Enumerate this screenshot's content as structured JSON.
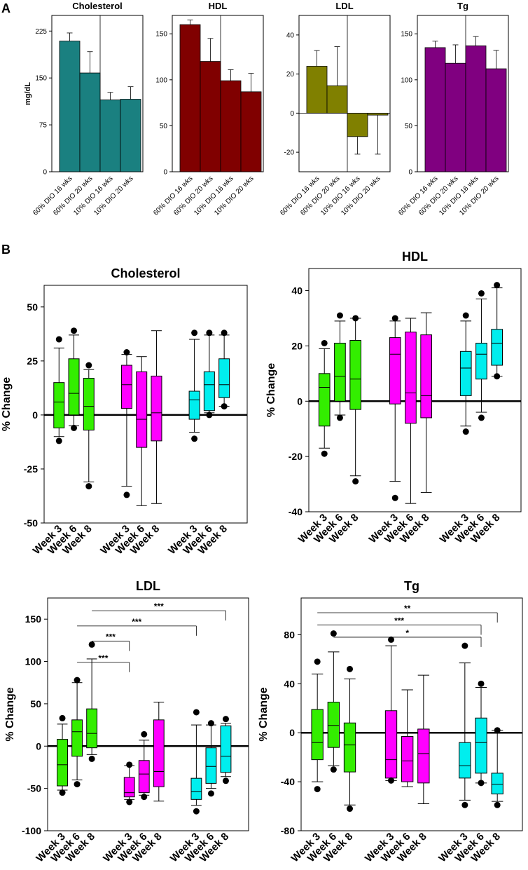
{
  "panel_labels": [
    "A",
    "B"
  ],
  "colors": {
    "cholesterol": "#1a8080",
    "hdl": "#800000",
    "ldl": "#808000",
    "tg": "#800080",
    "green": "#33ee00",
    "magenta": "#ff00ff",
    "cyan": "#00eeee"
  },
  "chart_data": [
    {
      "type": "bar",
      "panel": "A",
      "title": "Cholesterol",
      "ylabel": "mg/dL",
      "categories": [
        "60% DIO 16 wks",
        "60% DIO 20 wks",
        "10% DIO 16 wks",
        "10% DIO 20 wks"
      ],
      "values": [
        209,
        158,
        115,
        116
      ],
      "errors": [
        13,
        34,
        12,
        20
      ],
      "ylim": [
        0,
        250
      ],
      "yticks": [
        0,
        75,
        150,
        225
      ],
      "divider_after": 2,
      "color_key": "cholesterol"
    },
    {
      "type": "bar",
      "panel": "A",
      "title": "HDL",
      "ylabel": "",
      "categories": [
        "60% DIO 16 wks",
        "60% DIO 20 wks",
        "10% DIO 16 wks",
        "10% DIO 20 wks"
      ],
      "values": [
        160,
        120,
        99,
        87
      ],
      "errors": [
        5,
        25,
        12,
        20
      ],
      "ylim": [
        0,
        170
      ],
      "yticks": [
        0,
        50,
        100,
        150
      ],
      "divider_after": 2,
      "color_key": "hdl"
    },
    {
      "type": "bar",
      "panel": "A",
      "title": "LDL",
      "ylabel": "",
      "categories": [
        "60% DIO 16 wks",
        "60% DIO 20 wks",
        "10% DIO 16 wks",
        "10% DIO 20 wks"
      ],
      "values": [
        24,
        14,
        -12,
        -1
      ],
      "errors": [
        8,
        20,
        9,
        20
      ],
      "ylim": [
        -30,
        50
      ],
      "yticks": [
        -20,
        0,
        20,
        40
      ],
      "divider_after": 2,
      "color_key": "ldl"
    },
    {
      "type": "bar",
      "panel": "A",
      "title": "Tg",
      "ylabel": "",
      "categories": [
        "60% DIO 16 wks",
        "60% DIO 20 wks",
        "10% DIO 16 wks",
        "10% DIO 20 wks"
      ],
      "values": [
        135,
        118,
        137,
        112
      ],
      "errors": [
        7,
        20,
        10,
        20
      ],
      "ylim": [
        0,
        170
      ],
      "yticks": [
        0,
        50,
        100,
        150
      ],
      "divider_after": 2,
      "color_key": "tg"
    },
    {
      "type": "box",
      "panel": "B",
      "title": "Cholesterol",
      "ylabel": "% Change",
      "ylim": [
        -50,
        60
      ],
      "yticks": [
        -50,
        -25,
        0,
        25,
        50
      ],
      "group_labels": [
        "Week 3",
        "Week 6",
        "Week 8"
      ],
      "boxes": [
        {
          "group": 0,
          "color": "green",
          "min": -10,
          "q1": -6,
          "median": 6,
          "q3": 15,
          "max": 31,
          "outliers": [
            35,
            -12
          ]
        },
        {
          "group": 0,
          "color": "green",
          "min": -5,
          "q1": 0,
          "median": 10,
          "q3": 26,
          "max": 37,
          "outliers": [
            39,
            -6
          ]
        },
        {
          "group": 0,
          "color": "green",
          "min": -31,
          "q1": -7,
          "median": 4,
          "q3": 17,
          "max": 21,
          "outliers": [
            23,
            -33
          ]
        },
        {
          "group": 1,
          "color": "magenta",
          "min": -33,
          "q1": 3,
          "median": 14,
          "q3": 23,
          "max": 28,
          "outliers": [
            29,
            -37
          ]
        },
        {
          "group": 1,
          "color": "magenta",
          "min": -42,
          "q1": -15,
          "median": -2,
          "q3": 20,
          "max": 27,
          "outliers": []
        },
        {
          "group": 1,
          "color": "magenta",
          "min": -41,
          "q1": -12,
          "median": 1,
          "q3": 18,
          "max": 39,
          "outliers": []
        },
        {
          "group": 2,
          "color": "cyan",
          "min": -8,
          "q1": -2,
          "median": 7,
          "q3": 11,
          "max": 35,
          "outliers": [
            38,
            -11
          ]
        },
        {
          "group": 2,
          "color": "cyan",
          "min": 1,
          "q1": 2,
          "median": 14,
          "q3": 20,
          "max": 37,
          "outliers": [
            38,
            0
          ]
        },
        {
          "group": 2,
          "color": "cyan",
          "min": 4,
          "q1": 8,
          "median": 14,
          "q3": 26,
          "max": 37,
          "outliers": [
            38,
            4
          ]
        }
      ],
      "significance": []
    },
    {
      "type": "box",
      "panel": "B",
      "title": "HDL",
      "ylabel": "% Change",
      "ylim": [
        -40,
        48
      ],
      "yticks": [
        -40,
        -20,
        0,
        20,
        40
      ],
      "group_labels": [
        "Week 3",
        "Week 6",
        "Week 8"
      ],
      "boxes": [
        {
          "group": 0,
          "color": "green",
          "min": -17,
          "q1": -9,
          "median": 5,
          "q3": 10,
          "max": 19,
          "outliers": [
            21,
            -19
          ]
        },
        {
          "group": 0,
          "color": "green",
          "min": -5,
          "q1": 0,
          "median": 9,
          "q3": 21,
          "max": 29,
          "outliers": [
            31,
            -6
          ]
        },
        {
          "group": 0,
          "color": "green",
          "min": -27,
          "q1": -3,
          "median": 8,
          "q3": 22,
          "max": 30,
          "outliers": [
            30,
            -29
          ]
        },
        {
          "group": 1,
          "color": "magenta",
          "min": -29,
          "q1": -1,
          "median": 17,
          "q3": 23,
          "max": 29,
          "outliers": [
            30,
            -35
          ]
        },
        {
          "group": 1,
          "color": "magenta",
          "min": -37,
          "q1": -8,
          "median": 3,
          "q3": 25,
          "max": 30,
          "outliers": []
        },
        {
          "group": 1,
          "color": "magenta",
          "min": -33,
          "q1": -6,
          "median": 2,
          "q3": 24,
          "max": 32,
          "outliers": []
        },
        {
          "group": 2,
          "color": "cyan",
          "min": -9,
          "q1": 2,
          "median": 12,
          "q3": 18,
          "max": 29,
          "outliers": [
            31,
            -11
          ]
        },
        {
          "group": 2,
          "color": "cyan",
          "min": -4,
          "q1": 8,
          "median": 17,
          "q3": 21,
          "max": 37,
          "outliers": [
            39,
            -6
          ]
        },
        {
          "group": 2,
          "color": "cyan",
          "min": 9,
          "q1": 13,
          "median": 21,
          "q3": 26,
          "max": 41,
          "outliers": [
            42,
            9
          ]
        }
      ],
      "significance": []
    },
    {
      "type": "box",
      "panel": "B",
      "title": "LDL",
      "ylabel": "% Change",
      "ylim": [
        -100,
        175
      ],
      "yticks": [
        -100,
        -50,
        0,
        50,
        100,
        150
      ],
      "group_labels": [
        "Week 3",
        "Week 6",
        "Week 8"
      ],
      "boxes": [
        {
          "group": 0,
          "color": "green",
          "min": -52,
          "q1": -47,
          "median": -22,
          "q3": 8,
          "max": 26,
          "outliers": [
            33,
            -55
          ]
        },
        {
          "group": 0,
          "color": "green",
          "min": -40,
          "q1": -12,
          "median": 17,
          "q3": 31,
          "max": 75,
          "outliers": [
            78,
            -45
          ]
        },
        {
          "group": 0,
          "color": "green",
          "min": -10,
          "q1": -2,
          "median": 15,
          "q3": 44,
          "max": 103,
          "outliers": [
            120,
            -15
          ]
        },
        {
          "group": 1,
          "color": "magenta",
          "min": -63,
          "q1": -60,
          "median": -55,
          "q3": -37,
          "max": -23,
          "outliers": [
            -22,
            -66
          ]
        },
        {
          "group": 1,
          "color": "magenta",
          "min": -58,
          "q1": -55,
          "median": -33,
          "q3": -17,
          "max": 7,
          "outliers": [
            14,
            -60
          ]
        },
        {
          "group": 1,
          "color": "magenta",
          "min": -65,
          "q1": -48,
          "median": -30,
          "q3": 31,
          "max": 52,
          "outliers": []
        },
        {
          "group": 2,
          "color": "cyan",
          "min": -70,
          "q1": -63,
          "median": -54,
          "q3": -38,
          "max": 25,
          "outliers": [
            40,
            -77
          ]
        },
        {
          "group": 2,
          "color": "cyan",
          "min": -50,
          "q1": -44,
          "median": -24,
          "q3": -2,
          "max": 25,
          "outliers": [
            27,
            -56
          ]
        },
        {
          "group": 2,
          "color": "cyan",
          "min": -36,
          "q1": -31,
          "median": -12,
          "q3": 24,
          "max": 27,
          "outliers": [
            32,
            -41
          ]
        }
      ],
      "significance": [
        {
          "label": "***",
          "from": 2,
          "to": 8,
          "y": 160
        },
        {
          "label": "***",
          "from": 1,
          "to": 6,
          "y": 142
        },
        {
          "label": "***",
          "from": 2,
          "to": 3,
          "y": 124
        },
        {
          "label": "***",
          "from": 1,
          "to": 3,
          "y": 99
        }
      ]
    },
    {
      "type": "box",
      "panel": "B",
      "title": "Tg",
      "ylabel": "% Change",
      "ylim": [
        -80,
        110
      ],
      "yticks": [
        -80,
        -40,
        0,
        40,
        80
      ],
      "group_labels": [
        "Week 3",
        "Week 6",
        "Week 8"
      ],
      "boxes": [
        {
          "group": 0,
          "color": "green",
          "min": -40,
          "q1": -22,
          "median": -8,
          "q3": 19,
          "max": 48,
          "outliers": [
            58,
            -46
          ]
        },
        {
          "group": 0,
          "color": "green",
          "min": -27,
          "q1": -12,
          "median": 6,
          "q3": 25,
          "max": 66,
          "outliers": [
            81,
            -30
          ]
        },
        {
          "group": 0,
          "color": "green",
          "min": -59,
          "q1": -32,
          "median": -10,
          "q3": 8,
          "max": 44,
          "outliers": [
            52,
            -62
          ]
        },
        {
          "group": 1,
          "color": "magenta",
          "min": -39,
          "q1": -37,
          "median": -22,
          "q3": 18,
          "max": 71,
          "outliers": [
            76,
            -39
          ]
        },
        {
          "group": 1,
          "color": "magenta",
          "min": -44,
          "q1": -40,
          "median": -23,
          "q3": -3,
          "max": 35,
          "outliers": []
        },
        {
          "group": 1,
          "color": "magenta",
          "min": -58,
          "q1": -41,
          "median": -17,
          "q3": 3,
          "max": 47,
          "outliers": []
        },
        {
          "group": 2,
          "color": "cyan",
          "min": -55,
          "q1": -37,
          "median": -27,
          "q3": -8,
          "max": 57,
          "outliers": [
            71,
            -59
          ]
        },
        {
          "group": 2,
          "color": "cyan",
          "min": -41,
          "q1": -33,
          "median": -8,
          "q3": 12,
          "max": 37,
          "outliers": [
            40,
            -41
          ]
        },
        {
          "group": 2,
          "color": "cyan",
          "min": -56,
          "q1": -50,
          "median": -42,
          "q3": -33,
          "max": 2,
          "outliers": [
            2,
            -59
          ]
        }
      ],
      "significance": [
        {
          "label": "**",
          "from": 0,
          "to": 8,
          "y": 98
        },
        {
          "label": "***",
          "from": 0,
          "to": 7,
          "y": 88
        },
        {
          "label": "*",
          "from": 1,
          "to": 7,
          "y": 78
        }
      ]
    }
  ]
}
